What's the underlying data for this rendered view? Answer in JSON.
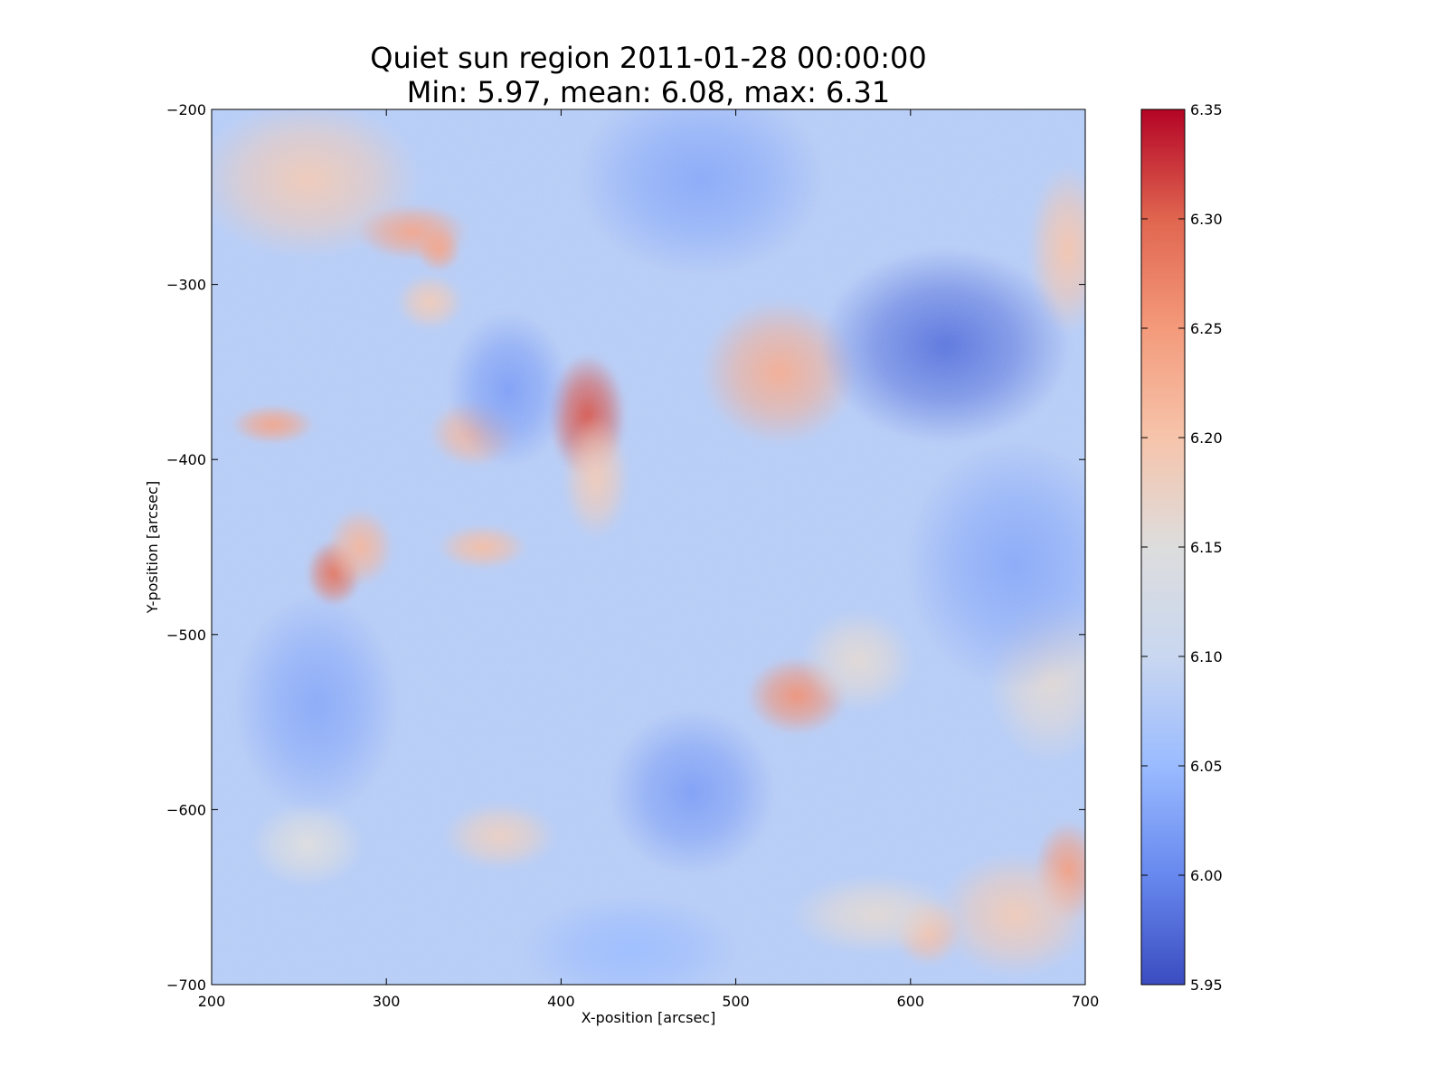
{
  "chart_data": {
    "type": "heatmap",
    "title_line1": "Quiet sun region 2011-01-28 00:00:00",
    "title_line2": "Min: 5.97, mean: 6.08, max: 6.31",
    "xlabel": "X-position [arcsec]",
    "ylabel": "Y-position [arcsec]",
    "xlim": [
      200,
      700
    ],
    "ylim": [
      -700,
      -200
    ],
    "x_ticks": [
      200,
      300,
      400,
      500,
      600,
      700
    ],
    "y_ticks": [
      -200,
      -300,
      -400,
      -500,
      -600,
      -700
    ],
    "x_tick_labels": [
      "200",
      "300",
      "400",
      "500",
      "600",
      "700"
    ],
    "y_tick_labels": [
      "−200",
      "−300",
      "−400",
      "−500",
      "−600",
      "−700"
    ],
    "colormap": "coolwarm",
    "colormap_stops": [
      "#3b4cc0",
      "#6788ee",
      "#9abbff",
      "#c9d7f0",
      "#dddddd",
      "#f6c4ab",
      "#f49a7b",
      "#e0654f",
      "#b40426"
    ],
    "background_value": 6.08,
    "colorbar": {
      "vmin": 5.95,
      "vmax": 6.35,
      "ticks": [
        5.95,
        6.0,
        6.05,
        6.1,
        6.15,
        6.2,
        6.25,
        6.3,
        6.35
      ],
      "tick_labels": [
        "5.95",
        "6.00",
        "6.05",
        "6.10",
        "6.15",
        "6.20",
        "6.25",
        "6.30",
        "6.35"
      ]
    },
    "features": [
      {
        "x": 415,
        "y": -375,
        "sx": 14,
        "sy": 22,
        "value": 6.31
      },
      {
        "x": 525,
        "y": -350,
        "sx": 28,
        "sy": 26,
        "value": 6.23
      },
      {
        "x": 420,
        "y": -410,
        "sx": 12,
        "sy": 22,
        "value": 6.19
      },
      {
        "x": 270,
        "y": -465,
        "sx": 10,
        "sy": 12,
        "value": 6.29
      },
      {
        "x": 285,
        "y": -450,
        "sx": 12,
        "sy": 14,
        "value": 6.22
      },
      {
        "x": 235,
        "y": -380,
        "sx": 15,
        "sy": 7,
        "value": 6.24
      },
      {
        "x": 350,
        "y": -385,
        "sx": 16,
        "sy": 12,
        "value": 6.22
      },
      {
        "x": 355,
        "y": -450,
        "sx": 16,
        "sy": 8,
        "value": 6.21
      },
      {
        "x": 535,
        "y": -535,
        "sx": 18,
        "sy": 14,
        "value": 6.26
      },
      {
        "x": 570,
        "y": -515,
        "sx": 20,
        "sy": 18,
        "value": 6.16
      },
      {
        "x": 255,
        "y": -240,
        "sx": 40,
        "sy": 28,
        "value": 6.19
      },
      {
        "x": 315,
        "y": -270,
        "sx": 20,
        "sy": 10,
        "value": 6.24
      },
      {
        "x": 330,
        "y": -280,
        "sx": 8,
        "sy": 8,
        "value": 6.24
      },
      {
        "x": 690,
        "y": -280,
        "sx": 14,
        "sy": 30,
        "value": 6.2
      },
      {
        "x": 690,
        "y": -635,
        "sx": 12,
        "sy": 18,
        "value": 6.25
      },
      {
        "x": 660,
        "y": -660,
        "sx": 28,
        "sy": 22,
        "value": 6.19
      },
      {
        "x": 610,
        "y": -670,
        "sx": 12,
        "sy": 12,
        "value": 6.21
      },
      {
        "x": 580,
        "y": -660,
        "sx": 30,
        "sy": 14,
        "value": 6.16
      },
      {
        "x": 365,
        "y": -615,
        "sx": 20,
        "sy": 12,
        "value": 6.18
      },
      {
        "x": 680,
        "y": -525,
        "sx": 22,
        "sy": 30,
        "value": 6.16
      },
      {
        "x": 325,
        "y": -310,
        "sx": 12,
        "sy": 10,
        "value": 6.19
      },
      {
        "x": 255,
        "y": -620,
        "sx": 20,
        "sy": 15,
        "value": 6.15
      },
      {
        "x": 620,
        "y": -335,
        "sx": 45,
        "sy": 35,
        "value": 5.98
      },
      {
        "x": 370,
        "y": -360,
        "sx": 22,
        "sy": 28,
        "value": 6.02
      },
      {
        "x": 475,
        "y": -590,
        "sx": 30,
        "sy": 30,
        "value": 6.02
      },
      {
        "x": 480,
        "y": -240,
        "sx": 45,
        "sy": 35,
        "value": 6.03
      },
      {
        "x": 260,
        "y": -540,
        "sx": 30,
        "sy": 40,
        "value": 6.03
      },
      {
        "x": 660,
        "y": -460,
        "sx": 40,
        "sy": 45,
        "value": 6.03
      },
      {
        "x": 440,
        "y": -680,
        "sx": 40,
        "sy": 20,
        "value": 6.05
      }
    ]
  }
}
